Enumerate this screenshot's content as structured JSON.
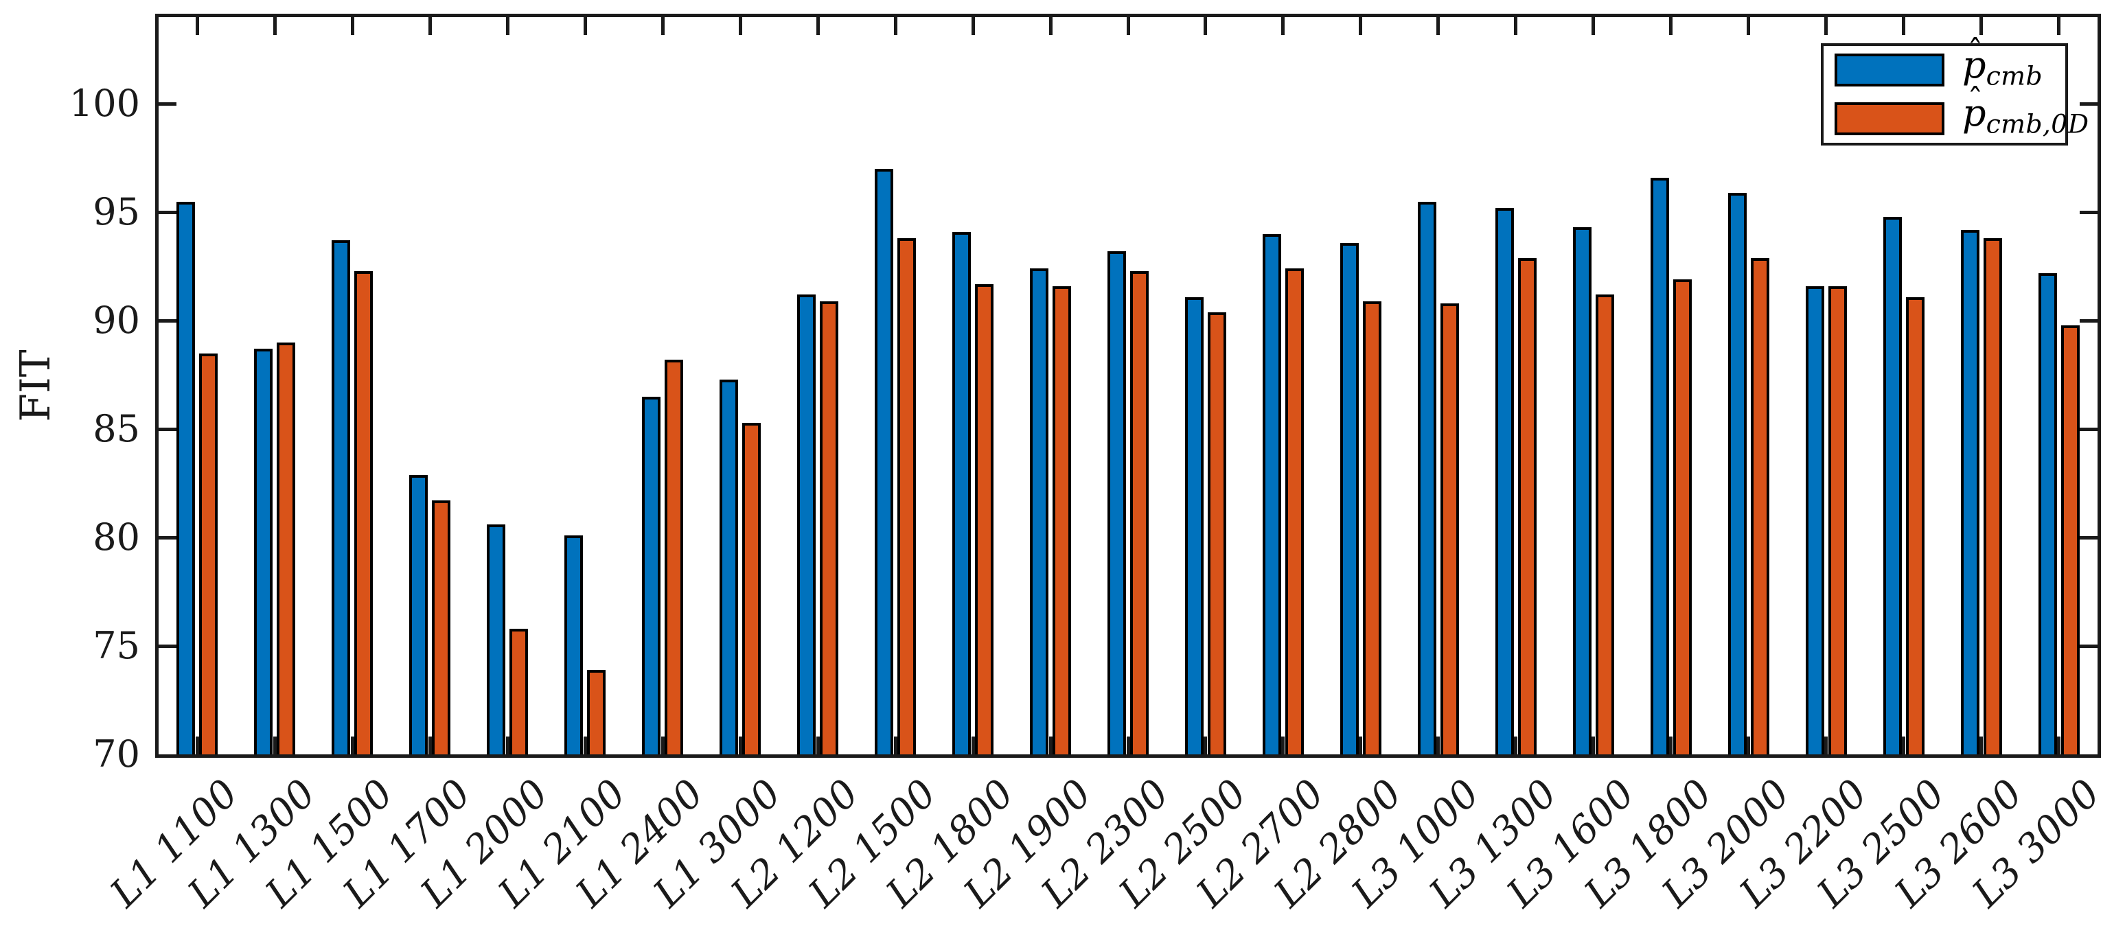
{
  "chart_data": {
    "type": "bar",
    "title": "",
    "xlabel": "",
    "ylabel": "FIT",
    "ylim": [
      70,
      104
    ],
    "yticks": [
      70,
      75,
      80,
      85,
      90,
      95,
      100
    ],
    "grid": false,
    "legend_position": "top-right",
    "box": true,
    "tick_direction": "in",
    "bar_edge_color": "#000000",
    "axis_color": "#1a1a1a",
    "background_color": "#ffffff",
    "categories": [
      "L1 1100",
      "L1 1300",
      "L1 1500",
      "L1 1700",
      "L1 2000",
      "L1 2100",
      "L1 2400",
      "L1 3000",
      "L2 1200",
      "L2 1500",
      "L2 1800",
      "L2 1900",
      "L2 2300",
      "L2 2500",
      "L2 2700",
      "L2 2800",
      "L3 1000",
      "L3 1300",
      "L3 1600",
      "L3 1800",
      "L3 2000",
      "L3 2200",
      "L3 2500",
      "L3 2600",
      "L3 3000"
    ],
    "series": [
      {
        "name": "p̂_cmb",
        "label_base": "p",
        "label_hat": "ˆ",
        "label_sub": "cmb",
        "color": "#0072BD",
        "values": [
          95.5,
          88.7,
          93.7,
          82.9,
          80.6,
          80.1,
          86.5,
          87.3,
          91.2,
          97.0,
          94.1,
          92.4,
          93.2,
          91.1,
          94.0,
          93.6,
          95.5,
          95.2,
          94.3,
          96.6,
          95.9,
          91.6,
          94.8,
          94.2,
          92.2
        ]
      },
      {
        "name": "p̂_cmb,0D",
        "label_base": "p",
        "label_hat": "ˆ",
        "label_sub": "cmb,0D",
        "color": "#D95319",
        "values": [
          88.5,
          89.0,
          92.3,
          81.7,
          75.8,
          73.9,
          88.2,
          85.3,
          90.9,
          93.8,
          91.7,
          91.6,
          92.3,
          90.4,
          92.4,
          90.9,
          90.8,
          92.9,
          91.2,
          91.9,
          92.9,
          91.6,
          91.1,
          93.8,
          89.8
        ]
      }
    ]
  }
}
